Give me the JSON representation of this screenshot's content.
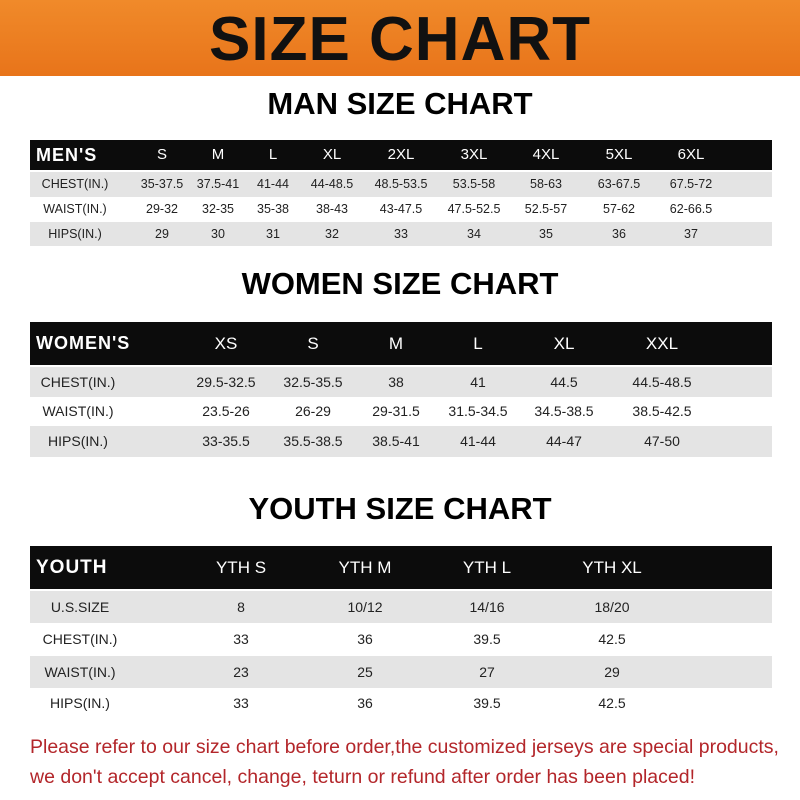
{
  "banner": {
    "title": "SIZE CHART",
    "color": "#ec7f22"
  },
  "men": {
    "title": "MAN SIZE CHART",
    "header": [
      "MEN'S",
      "S",
      "M",
      "L",
      "XL",
      "2XL",
      "3XL",
      "4XL",
      "5XL",
      "6XL"
    ],
    "rows": [
      [
        "CHEST(IN.)",
        "35-37.5",
        "37.5-41",
        "41-44",
        "44-48.5",
        "48.5-53.5",
        "53.5-58",
        "58-63",
        "63-67.5",
        "67.5-72"
      ],
      [
        "WAIST(IN.)",
        "29-32",
        "32-35",
        "35-38",
        "38-43",
        "43-47.5",
        "47.5-52.5",
        "52.5-57",
        "57-62",
        "62-66.5"
      ],
      [
        "HIPS(IN.)",
        "29",
        "30",
        "31",
        "32",
        "33",
        "34",
        "35",
        "36",
        "37"
      ]
    ]
  },
  "women": {
    "title": "WOMEN SIZE CHART",
    "header": [
      "WOMEN'S",
      "XS",
      "S",
      "M",
      "L",
      "XL",
      "XXL"
    ],
    "rows": [
      [
        "CHEST(IN.)",
        "29.5-32.5",
        "32.5-35.5",
        "38",
        "41",
        "44.5",
        "44.5-48.5"
      ],
      [
        "WAIST(IN.)",
        "23.5-26",
        "26-29",
        "29-31.5",
        "31.5-34.5",
        "34.5-38.5",
        "38.5-42.5"
      ],
      [
        "HIPS(IN.)",
        "33-35.5",
        "35.5-38.5",
        "38.5-41",
        "41-44",
        "44-47",
        "47-50"
      ]
    ]
  },
  "youth": {
    "title": "YOUTH SIZE CHART",
    "header": [
      "YOUTH",
      "YTH S",
      "YTH M",
      "YTH L",
      "YTH XL"
    ],
    "rows": [
      [
        "U.S.SIZE",
        "8",
        "10/12",
        "14/16",
        "18/20"
      ],
      [
        "CHEST(IN.)",
        "33",
        "36",
        "39.5",
        "42.5"
      ],
      [
        "WAIST(IN.)",
        "23",
        "25",
        "27",
        "29"
      ],
      [
        "HIPS(IN.)",
        "33",
        "36",
        "39.5",
        "42.5"
      ]
    ]
  },
  "notice": {
    "line1": "Please refer to our size chart before order,the customized jerseys are special products,",
    "line2": "we don't accept cancel, change, teturn or refund after order has been placed!",
    "color": "#b3262a"
  }
}
